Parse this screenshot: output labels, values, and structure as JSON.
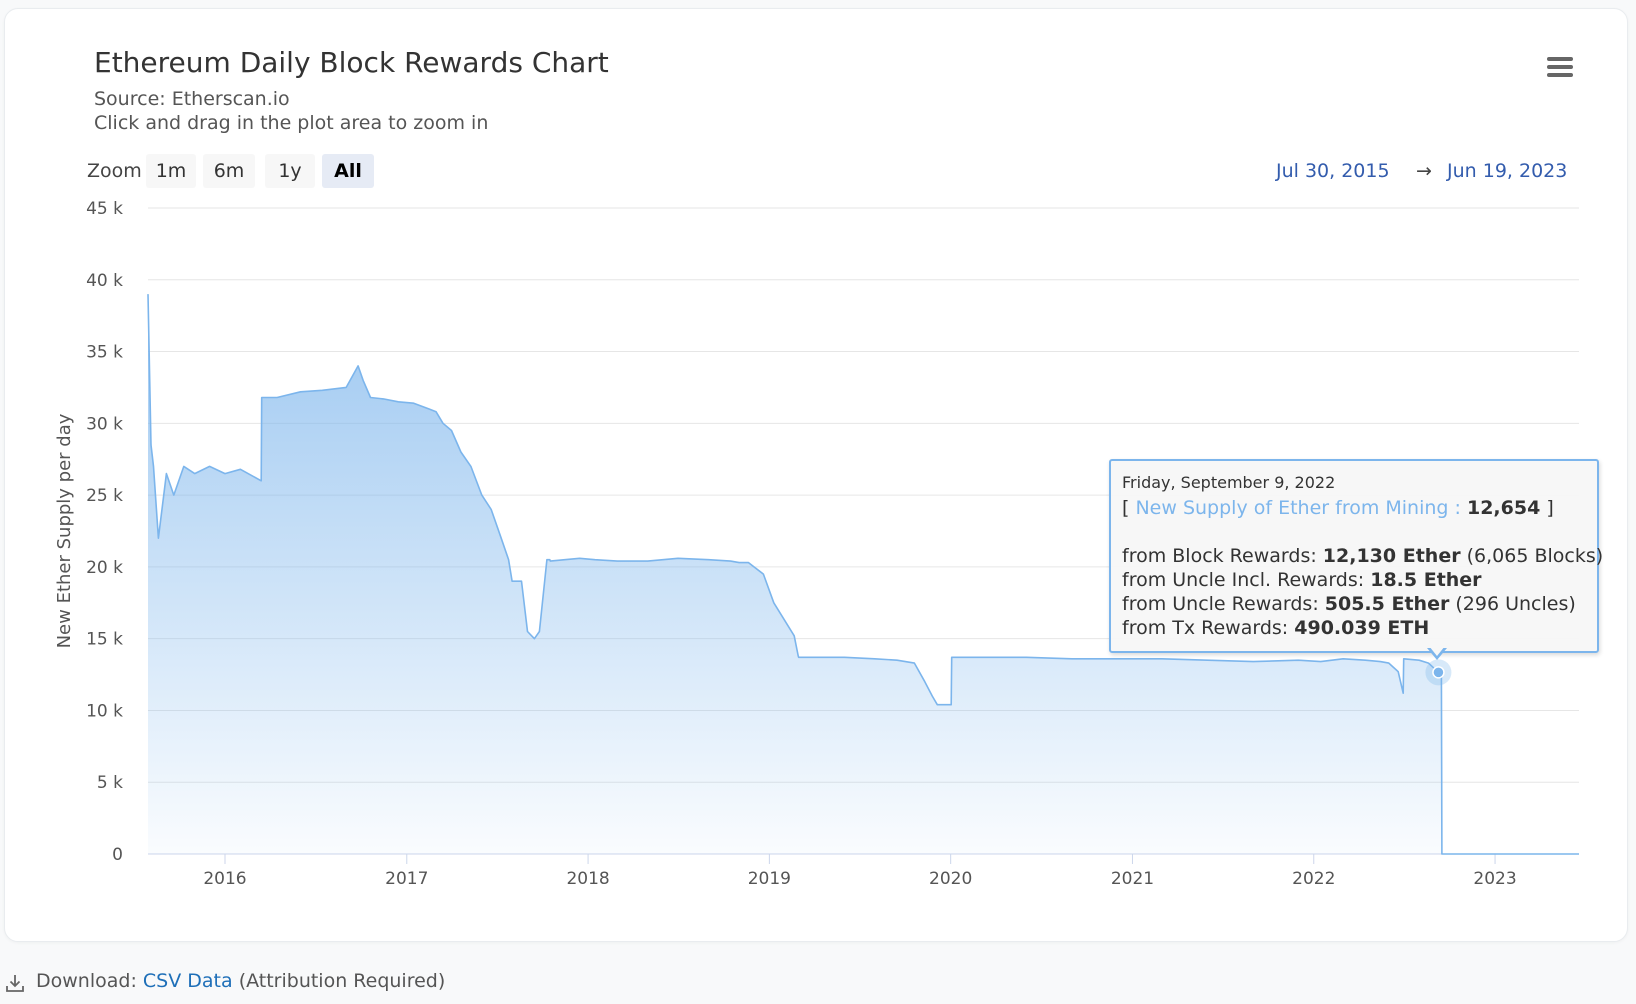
{
  "chart": {
    "title": "Ethereum Daily Block Rewards Chart",
    "subtitle_source": "Source: Etherscan.io",
    "subtitle_hint": "Click and drag in the plot area to zoom in",
    "menu_icon": "hamburger-menu-icon"
  },
  "range_selector": {
    "zoom_label": "Zoom",
    "buttons": [
      "1m",
      "6m",
      "1y",
      "All"
    ],
    "active": "All",
    "from": "Jul 30, 2015",
    "arrow": "→",
    "to": "Jun 19, 2023"
  },
  "tooltip": {
    "date": "Friday, September 9, 2022",
    "bracket_open": "[",
    "series_name": "New Supply of Ether from Mining :",
    "series_value": "12,654",
    "bracket_close": "]",
    "block_label": "from Block Rewards:",
    "block_value": "12,130 Ether",
    "block_extra": "(6,065 Blocks)",
    "uncle_incl_label": "from Uncle Incl. Rewards:",
    "uncle_incl_value": "18.5 Ether",
    "uncle_label": "from Uncle Rewards:",
    "uncle_value": "505.5 Ether",
    "uncle_extra": "(296 Uncles)",
    "tx_label": "from Tx Rewards:",
    "tx_value": "490.039 ETH"
  },
  "download": {
    "label": "Download:",
    "link": "CSV Data",
    "note": "(Attribution Required)"
  },
  "colors": {
    "series": "#7cb5ec",
    "link": "#1e6fb8",
    "range_text": "#335cad"
  },
  "chart_data": {
    "type": "area",
    "title": "Ethereum Daily Block Rewards Chart",
    "subtitle": "Source: Etherscan.io",
    "ylabel": "New Ether Supply per day",
    "xlabel": "",
    "ylim": [
      0,
      45000
    ],
    "xlim": [
      "2015-07-30",
      "2023-06-19"
    ],
    "y_ticks": [
      0,
      5000,
      10000,
      15000,
      20000,
      25000,
      30000,
      35000,
      40000,
      45000
    ],
    "y_tick_labels": [
      "0",
      "5 k",
      "10 k",
      "15 k",
      "20 k",
      "25 k",
      "30 k",
      "35 k",
      "40 k",
      "45 k"
    ],
    "x_ticks": [
      "2016-01-01",
      "2017-01-01",
      "2018-01-01",
      "2019-01-01",
      "2020-01-01",
      "2021-01-01",
      "2022-01-01",
      "2023-01-01"
    ],
    "x_tick_labels": [
      "2016",
      "2017",
      "2018",
      "2019",
      "2020",
      "2021",
      "2022",
      "2023"
    ],
    "grid": true,
    "legend": "none",
    "series": [
      {
        "x": [
          "2015-07-30",
          "2015-08-05",
          "2015-08-10",
          "2015-08-20",
          "2015-09-05",
          "2015-09-20",
          "2015-10-10",
          "2015-11-01",
          "2015-12-01",
          "2016-01-01",
          "2016-02-01",
          "2016-03-14",
          "2016-03-15",
          "2016-04-15",
          "2016-06-01",
          "2016-07-15",
          "2016-09-01",
          "2016-09-25",
          "2016-10-05",
          "2016-10-20",
          "2016-11-15",
          "2016-12-15",
          "2017-01-15",
          "2017-02-15",
          "2017-03-01",
          "2017-03-15",
          "2017-04-01",
          "2017-04-20",
          "2017-05-10",
          "2017-06-01",
          "2017-06-20",
          "2017-07-10",
          "2017-07-25",
          "2017-08-01",
          "2017-08-20",
          "2017-09-01",
          "2017-09-15",
          "2017-09-25",
          "2017-10-10",
          "2017-10-16",
          "2017-10-17",
          "2017-11-15",
          "2017-12-15",
          "2018-01-15",
          "2018-03-01",
          "2018-05-01",
          "2018-07-01",
          "2018-09-01",
          "2018-10-15",
          "2018-11-01",
          "2018-11-20",
          "2018-12-01",
          "2018-12-20",
          "2019-01-10",
          "2019-02-20",
          "2019-02-28",
          "2019-03-01",
          "2019-04-01",
          "2019-06-01",
          "2019-08-01",
          "2019-09-15",
          "2019-10-20",
          "2019-11-10",
          "2019-11-25",
          "2019-12-05",
          "2019-12-20",
          "2020-01-02",
          "2020-01-03",
          "2020-03-01",
          "2020-06-01",
          "2020-09-01",
          "2020-12-01",
          "2021-03-01",
          "2021-06-01",
          "2021-09-01",
          "2021-12-01",
          "2022-01-15",
          "2022-03-01",
          "2022-04-15",
          "2022-05-15",
          "2022-06-01",
          "2022-06-20",
          "2022-06-30",
          "2022-07-01",
          "2022-08-01",
          "2022-08-20",
          "2022-09-09",
          "2022-09-15",
          "2022-09-16",
          "2023-01-01",
          "2023-06-19"
        ],
        "y": [
          39000,
          28500,
          27000,
          22000,
          26500,
          25000,
          27000,
          26500,
          27000,
          26500,
          26800,
          26000,
          31800,
          31800,
          32200,
          32300,
          32500,
          34000,
          33000,
          31800,
          31700,
          31500,
          31400,
          31000,
          30800,
          30000,
          29500,
          28000,
          27000,
          25000,
          24000,
          22000,
          20500,
          19000,
          19000,
          15500,
          15000,
          15500,
          20500,
          20500,
          20400,
          20500,
          20600,
          20500,
          20400,
          20400,
          20600,
          20500,
          20400,
          20300,
          20300,
          20000,
          19500,
          17500,
          15200,
          13800,
          13700,
          13700,
          13700,
          13600,
          13500,
          13300,
          12000,
          11000,
          10400,
          10400,
          10400,
          13700,
          13700,
          13700,
          13600,
          13600,
          13600,
          13500,
          13400,
          13500,
          13400,
          13600,
          13500,
          13400,
          13300,
          12700,
          11200,
          13600,
          13500,
          13300,
          12654,
          12600,
          0,
          0,
          0
        ]
      }
    ]
  }
}
